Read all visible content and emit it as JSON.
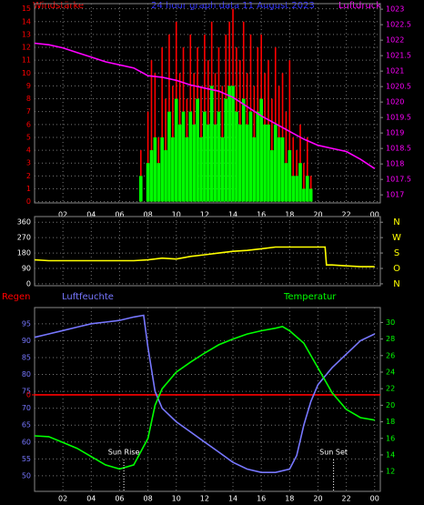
{
  "chart_data": [
    {
      "type": "bar",
      "title": "24 hour graph data 11 August 2023",
      "y_label": "Windstärke",
      "y2_label": "Luftdruck",
      "xlim": [
        0,
        24.4
      ],
      "xticks": [
        {
          "value": 2,
          "label": "02"
        },
        {
          "value": 4,
          "label": "04"
        },
        {
          "value": 6,
          "label": "06"
        },
        {
          "value": 8,
          "label": "08"
        },
        10,
        12,
        14,
        16,
        18,
        20,
        22,
        {
          "value": 24,
          "label": "00"
        }
      ],
      "ylim": [
        -0.1,
        15.4
      ],
      "yticks": [
        0,
        1,
        2,
        3,
        4,
        5,
        6,
        7,
        8,
        9,
        10,
        11,
        12,
        13,
        14,
        15
      ],
      "y2lim": [
        1016.74,
        1023.18
      ],
      "y2ticks": [
        1017,
        1017.5,
        1018,
        1018.5,
        1019,
        1019.5,
        1020,
        1020.5,
        1021,
        1021.5,
        1022,
        1022.5,
        1023
      ],
      "grid": true,
      "series": [
        {
          "color": "#ff0000",
          "x": [
            7.5,
            7.75,
            8,
            8.25,
            8.5,
            8.75,
            9,
            9.25,
            9.5,
            9.75,
            10,
            10.25,
            10.5,
            10.75,
            11,
            11.25,
            11.5,
            11.75,
            12,
            12.25,
            12.5,
            12.75,
            13,
            13.25,
            13.5,
            13.75,
            14,
            14.25,
            14.5,
            14.75,
            15,
            15.25,
            15.5,
            15.75,
            16,
            16.25,
            16.5,
            16.75,
            17,
            17.25,
            17.5,
            17.75,
            18,
            18.25,
            18.5,
            18.75,
            19,
            19.25,
            19.5,
            19.75
          ],
          "values": [
            4,
            0,
            7,
            11,
            10,
            5,
            12,
            8,
            13,
            9,
            14,
            10,
            12,
            8,
            13,
            10,
            12,
            9,
            13,
            11,
            14,
            10,
            12,
            9,
            13,
            14,
            15,
            12,
            11,
            14,
            10,
            13,
            9,
            12,
            13,
            10,
            11,
            8,
            12,
            9,
            10,
            7,
            11,
            5,
            4,
            6,
            3,
            5,
            2,
            0
          ]
        },
        {
          "color": "#00ff00",
          "x": [
            7.5,
            7.75,
            8,
            8.25,
            8.5,
            8.75,
            9,
            9.25,
            9.5,
            9.75,
            10,
            10.25,
            10.5,
            10.75,
            11,
            11.25,
            11.5,
            11.75,
            12,
            12.25,
            12.5,
            12.75,
            13,
            13.25,
            13.5,
            13.75,
            14,
            14.25,
            14.5,
            14.75,
            15,
            15.25,
            15.5,
            15.75,
            16,
            16.25,
            16.5,
            16.75,
            17,
            17.25,
            17.5,
            17.75,
            18,
            18.25,
            18.5,
            18.75,
            19,
            19.25,
            19.5,
            19.75
          ],
          "values": [
            2,
            0,
            3,
            4,
            5,
            3,
            5,
            4,
            7,
            5,
            8,
            6,
            7,
            5,
            7,
            6,
            8,
            5,
            7,
            6,
            9,
            6,
            7,
            5,
            8,
            9,
            9,
            7,
            6,
            8,
            6,
            7,
            5,
            7,
            8,
            6,
            6,
            4,
            6,
            5,
            5,
            3,
            4,
            2,
            2,
            3,
            1,
            2,
            1,
            0
          ]
        },
        {
          "type": "line",
          "axis": "y2",
          "color": "#ff00ff",
          "x": [
            0,
            1,
            2,
            3,
            4,
            5,
            6,
            7,
            8,
            9,
            10,
            11,
            12,
            13,
            14,
            15,
            16,
            17,
            18,
            19,
            20,
            21,
            22,
            23,
            24
          ],
          "values": [
            1021.9,
            1021.85,
            1021.75,
            1021.6,
            1021.45,
            1021.3,
            1021.2,
            1021.1,
            1020.85,
            1020.8,
            1020.7,
            1020.55,
            1020.45,
            1020.35,
            1020.15,
            1019.85,
            1019.55,
            1019.3,
            1019.05,
            1018.8,
            1018.6,
            1018.5,
            1018.4,
            1018.15,
            1017.85
          ]
        }
      ]
    },
    {
      "type": "line",
      "xlim": [
        0,
        24.4
      ],
      "x_tick_labels": false,
      "xticks": [
        2,
        4,
        6,
        8,
        10,
        12,
        14,
        16,
        18,
        20,
        22,
        24
      ],
      "ylim": [
        -11,
        393
      ],
      "yticks": [
        0,
        90,
        180,
        270,
        360
      ],
      "y2lim": [
        -11,
        393
      ],
      "y2ticks": [
        {
          "value": 360,
          "label": "N"
        },
        {
          "value": 270,
          "label": "W"
        },
        {
          "value": 180,
          "label": "S"
        },
        {
          "value": 90,
          "label": "O"
        },
        {
          "value": 0,
          "label": "N"
        }
      ],
      "grid": true,
      "series": [
        {
          "color": "#ffff00",
          "x": [
            0,
            1,
            2,
            3,
            4,
            5,
            6,
            7,
            8,
            9,
            10,
            11,
            12,
            13,
            14,
            15,
            16,
            17,
            18,
            19,
            20,
            20.5,
            20.6,
            21,
            22,
            23,
            24
          ],
          "values": [
            140,
            135,
            135,
            135,
            135,
            135,
            135,
            135,
            140,
            150,
            145,
            160,
            170,
            180,
            190,
            195,
            205,
            215,
            215,
            215,
            215,
            215,
            110,
            110,
            105,
            100,
            100
          ]
        }
      ]
    },
    {
      "type": "line",
      "xlim": [
        0,
        24.4
      ],
      "xticks": [
        {
          "value": 2,
          "label": "02"
        },
        {
          "value": 4,
          "label": "04"
        },
        {
          "value": 6,
          "label": "06"
        },
        {
          "value": 8,
          "label": "08"
        },
        10,
        12,
        14,
        16,
        18,
        20,
        22,
        {
          "value": 24,
          "label": "00"
        }
      ],
      "ylim": [
        45.4,
        99.8
      ],
      "yticks": [
        50,
        55,
        60,
        65,
        70,
        75,
        80,
        85,
        90,
        95
      ],
      "y2lim": [
        9.6,
        31.8
      ],
      "y2ticks": [
        12,
        14,
        16,
        18,
        20,
        22,
        24,
        26,
        28,
        30
      ],
      "y3lim": [
        -1.05,
        0.95
      ],
      "y3ticks": [
        0
      ],
      "grid": true,
      "series": [
        {
          "name": "Regen",
          "axis": "y3",
          "color": "#ff0000",
          "x": [
            0,
            24.4
          ],
          "values": [
            0,
            0
          ]
        },
        {
          "name": "Luftfeuchte",
          "color": "#7777ff",
          "x": [
            0,
            1,
            2,
            3,
            4,
            5,
            6,
            7,
            7.7,
            8,
            8.5,
            9,
            10,
            11,
            12,
            13,
            14,
            15,
            16,
            17,
            18,
            18.5,
            19,
            19.5,
            20,
            21,
            22,
            23,
            24
          ],
          "values": [
            91,
            92,
            93,
            94,
            95,
            95.5,
            96,
            97,
            97.5,
            88,
            75,
            70,
            66,
            63,
            60,
            57,
            54,
            52,
            51,
            51,
            52,
            56,
            65,
            72,
            77,
            82,
            86,
            90,
            92
          ]
        },
        {
          "name": "Temperatur",
          "axis": "y2",
          "color": "#00ff00",
          "x": [
            0,
            1,
            2,
            3,
            4,
            5,
            6,
            7,
            8,
            8.5,
            9,
            10,
            11,
            12,
            13,
            14,
            15,
            16,
            17,
            17.5,
            18,
            19,
            20,
            21,
            22,
            23,
            24
          ],
          "values": [
            16.3,
            16.2,
            15.5,
            14.8,
            13.8,
            12.8,
            12.3,
            12.8,
            16,
            20,
            22,
            24,
            25.2,
            26.3,
            27.3,
            28,
            28.6,
            29,
            29.3,
            29.5,
            29,
            27.5,
            24.5,
            21.5,
            19.5,
            18.5,
            18.2
          ]
        }
      ],
      "annotations": [
        {
          "text": "Sun Rise",
          "x": 6.3
        },
        {
          "text": "Sun Set",
          "x": 21.1
        }
      ]
    }
  ]
}
